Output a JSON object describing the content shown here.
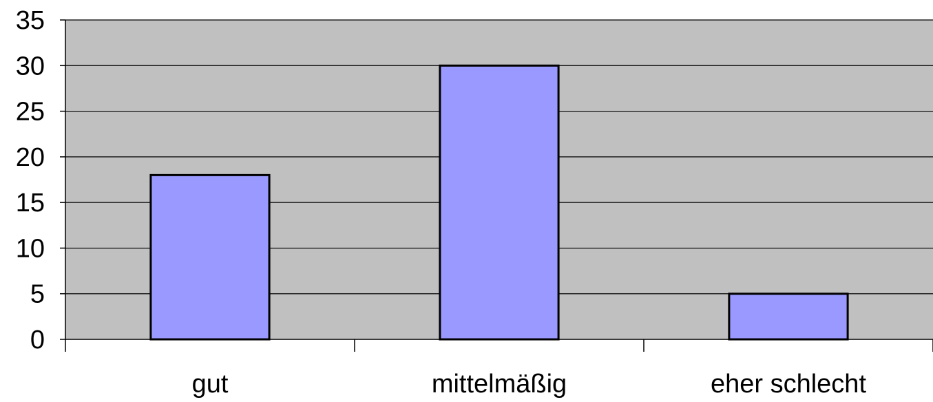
{
  "chart_data": {
    "type": "bar",
    "categories": [
      "gut",
      "mittelmäßig",
      "eher schlecht"
    ],
    "values": [
      18,
      30,
      5
    ],
    "title": "",
    "xlabel": "",
    "ylabel": "",
    "ylim": [
      0,
      35
    ],
    "yticks": [
      0,
      5,
      10,
      15,
      20,
      25,
      30,
      35
    ],
    "grid": true,
    "legend": "none",
    "colors": {
      "plot_background": "#c0c0c0",
      "bar_fill": "#9999ff",
      "bar_stroke": "#000000",
      "gridline": "#000000"
    }
  }
}
